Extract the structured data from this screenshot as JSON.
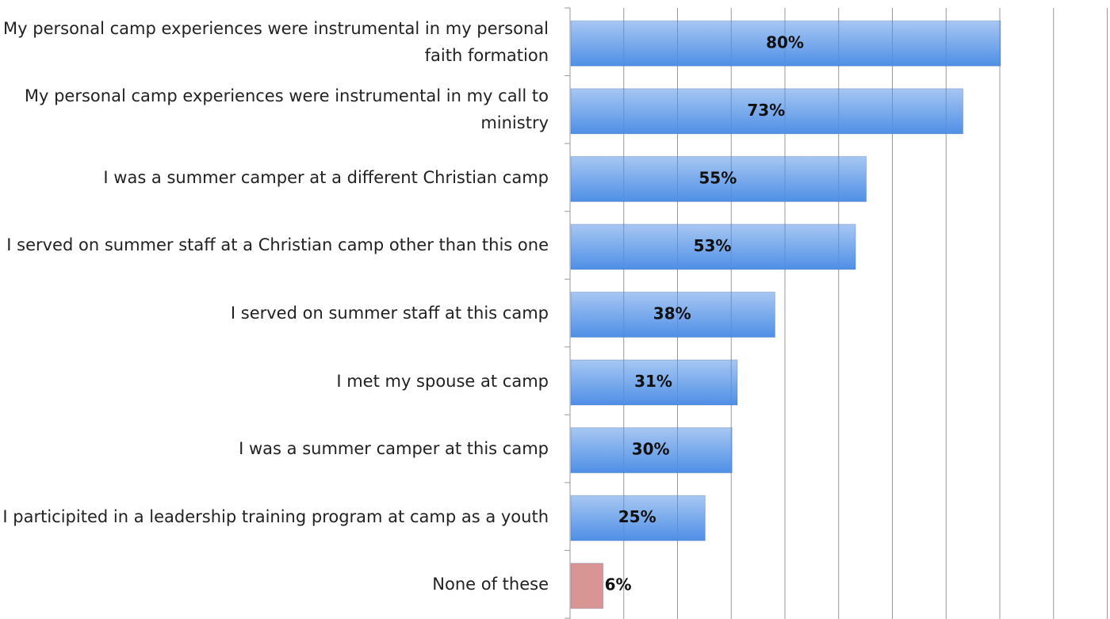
{
  "chart_data": {
    "type": "hbar",
    "categories": [
      "My personal camp experiences were instrumental in my personal faith formation",
      "My personal camp experiences were instrumental in my call to ministry",
      "I was a summer camper at a different Christian camp",
      "I served on summer staff at a Christian camp other than this one",
      "I served on summer staff at this camp",
      "I met my spouse at camp",
      "I was a summer camper at this camp",
      "I participited in a leadership training program at camp as a youth",
      "None of these"
    ],
    "values": [
      80,
      73,
      55,
      53,
      38,
      31,
      30,
      25,
      6
    ],
    "value_labels": [
      "80%",
      "73%",
      "55%",
      "53%",
      "38%",
      "31%",
      "30%",
      "25%",
      "6%"
    ],
    "colors": [
      "#4f8fe6",
      "#4f8fe6",
      "#4f8fe6",
      "#4f8fe6",
      "#4f8fe6",
      "#4f8fe6",
      "#4f8fe6",
      "#4f8fe6",
      "#d99594"
    ],
    "xlim": [
      0,
      100
    ],
    "xticks": [
      0,
      10,
      20,
      30,
      40,
      50,
      60,
      70,
      80,
      90,
      100
    ],
    "grid": true
  }
}
